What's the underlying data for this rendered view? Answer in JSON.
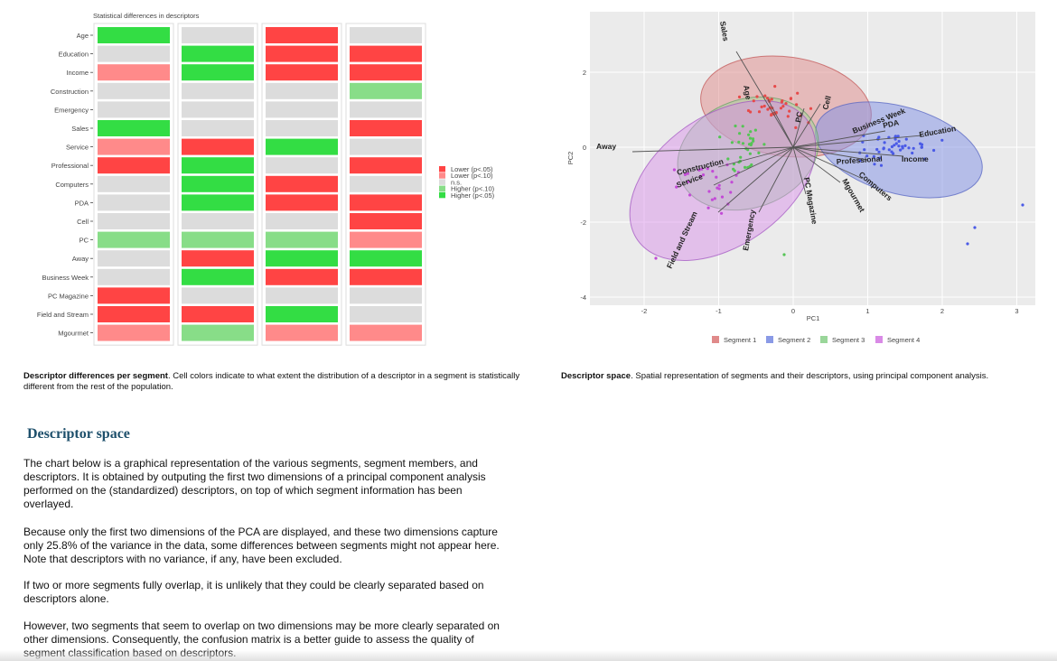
{
  "heatmap": {
    "title": "Statistical differences in descriptors",
    "rows": [
      "Age",
      "Education",
      "Income",
      "Construction",
      "Emergency",
      "Sales",
      "Service",
      "Professional",
      "Computers",
      "PDA",
      "Cell",
      "PC",
      "Away",
      "Business Week",
      "PC Magazine",
      "Field and Stream",
      "Mgourmet"
    ],
    "legend": [
      {
        "key": "L05",
        "label": "Lower (p<.05)",
        "color": "#ff4444"
      },
      {
        "key": "L10",
        "label": "Lower (p<.10)",
        "color": "#ff8a8a"
      },
      {
        "key": "NS",
        "label": "n.s.",
        "color": "#dcdcdc"
      },
      {
        "key": "H10",
        "label": "Higher (p<.10)",
        "color": "#88dd88"
      },
      {
        "key": "H05",
        "label": "Higher (p<.05)",
        "color": "#33dd44"
      }
    ],
    "cells": [
      [
        "H05",
        "NS",
        "L05",
        "NS"
      ],
      [
        "NS",
        "H05",
        "L05",
        "L05"
      ],
      [
        "L10",
        "H05",
        "L05",
        "L05"
      ],
      [
        "NS",
        "NS",
        "NS",
        "H10"
      ],
      [
        "NS",
        "NS",
        "NS",
        "NS"
      ],
      [
        "H05",
        "NS",
        "NS",
        "L05"
      ],
      [
        "L10",
        "L05",
        "H05",
        "NS"
      ],
      [
        "L05",
        "H05",
        "NS",
        "L05"
      ],
      [
        "NS",
        "H05",
        "L05",
        "NS"
      ],
      [
        "NS",
        "H05",
        "L05",
        "L05"
      ],
      [
        "NS",
        "NS",
        "NS",
        "L05"
      ],
      [
        "H10",
        "H10",
        "H10",
        "L10"
      ],
      [
        "NS",
        "L05",
        "H05",
        "H05"
      ],
      [
        "NS",
        "H05",
        "L05",
        "L05"
      ],
      [
        "L05",
        "NS",
        "NS",
        "NS"
      ],
      [
        "L05",
        "L05",
        "H05",
        "NS"
      ],
      [
        "L10",
        "H10",
        "L10",
        "L10"
      ]
    ]
  },
  "pca": {
    "x_ticks": [
      "-2",
      "-1",
      "0",
      "1",
      "2",
      "3"
    ],
    "y_ticks": [
      "2",
      "0",
      "-2",
      "-4"
    ],
    "xlabel": "PC1",
    "ylabel": "PC2",
    "legend": [
      {
        "label": "Segment 1",
        "color": "#e08a8a"
      },
      {
        "label": "Segment 2",
        "color": "#8a9ae6"
      },
      {
        "label": "Segment 3",
        "color": "#9ad69a"
      },
      {
        "label": "Segment 4",
        "color": "#d98ae6"
      }
    ],
    "vector_labels": [
      "Sales",
      "Age",
      "PC",
      "Cell",
      "Business Week",
      "PDA",
      "Education",
      "Income",
      "Professional",
      "Computers",
      "Mgourmet",
      "PC Magazine",
      "Emergency",
      "Field and Stream",
      "Service",
      "Construction",
      "Away"
    ]
  },
  "captions": {
    "heatmap_bold": "Descriptor differences per segment",
    "heatmap_rest": ". Cell colors indicate to what extent the distribution of a descriptor in a segment is statistically different from the rest of the population.",
    "pca_bold": "Descriptor space",
    "pca_rest": ". Spatial representation of segments and their descriptors, using principal component analysis."
  },
  "section": {
    "title": "Descriptor space",
    "paragraphs": [
      "The chart below is a graphical representation of the various segments, segment members, and descriptors. It is obtained by outputing the first two dimensions of a principal component analysis performed on the (standardized) descriptors, on top of which segment information has been overlayed.",
      "Because only the first two dimensions of the PCA are displayed, and these two dimensions capture only 25.8% of the variance in the data, some differences between segments might not appear here. Note that descriptors with no variance, if any, have been excluded.",
      "If two or more segments fully overlap, it is unlikely that they could be clearly separated based on descriptors alone.",
      "However, two segments that seem to overlap on two dimensions may be more clearly separated on other dimensions. Consequently, the confusion matrix is a better guide to assess the quality of segment classification based on descriptors."
    ]
  }
}
